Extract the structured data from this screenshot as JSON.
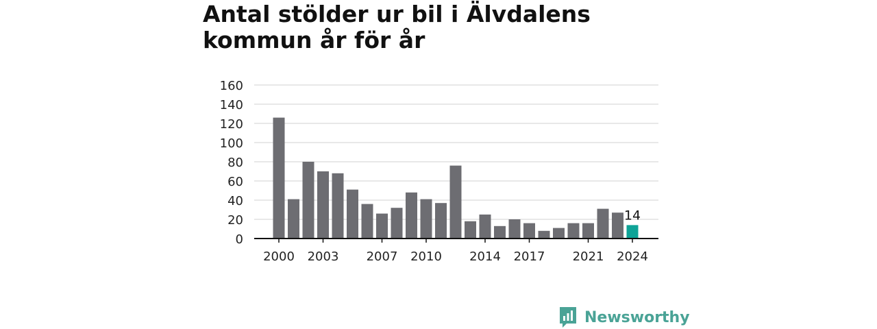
{
  "title": "Antal stölder ur bil i Älvdalens kommun år för år",
  "brand": {
    "name": "Newsworthy",
    "icon": "newsworthy-logo-icon",
    "color": "#4aa396"
  },
  "colors": {
    "bar": "#6d6d72",
    "highlight": "#0ea397",
    "grid": "#d9d9d9",
    "axis": "#111111"
  },
  "chart_data": {
    "type": "bar",
    "x": [
      2000,
      2001,
      2002,
      2003,
      2004,
      2005,
      2006,
      2007,
      2008,
      2009,
      2010,
      2011,
      2012,
      2013,
      2014,
      2015,
      2016,
      2017,
      2018,
      2019,
      2020,
      2021,
      2022,
      2023,
      2024
    ],
    "values": [
      126,
      41,
      80,
      70,
      68,
      51,
      36,
      26,
      32,
      48,
      41,
      37,
      76,
      18,
      25,
      13,
      20,
      16,
      8,
      11,
      16,
      16,
      31,
      27,
      14
    ],
    "x_ticks": [
      "2000",
      "2003",
      "2007",
      "2010",
      "2014",
      "2017",
      "2021",
      "2024"
    ],
    "y_ticks": [
      "0",
      "20",
      "40",
      "60",
      "80",
      "100",
      "120",
      "140",
      "160"
    ],
    "ylim": [
      0,
      160
    ],
    "grid": true,
    "highlight": {
      "x": 2024,
      "label": "14"
    },
    "xlabel": "",
    "ylabel": ""
  }
}
